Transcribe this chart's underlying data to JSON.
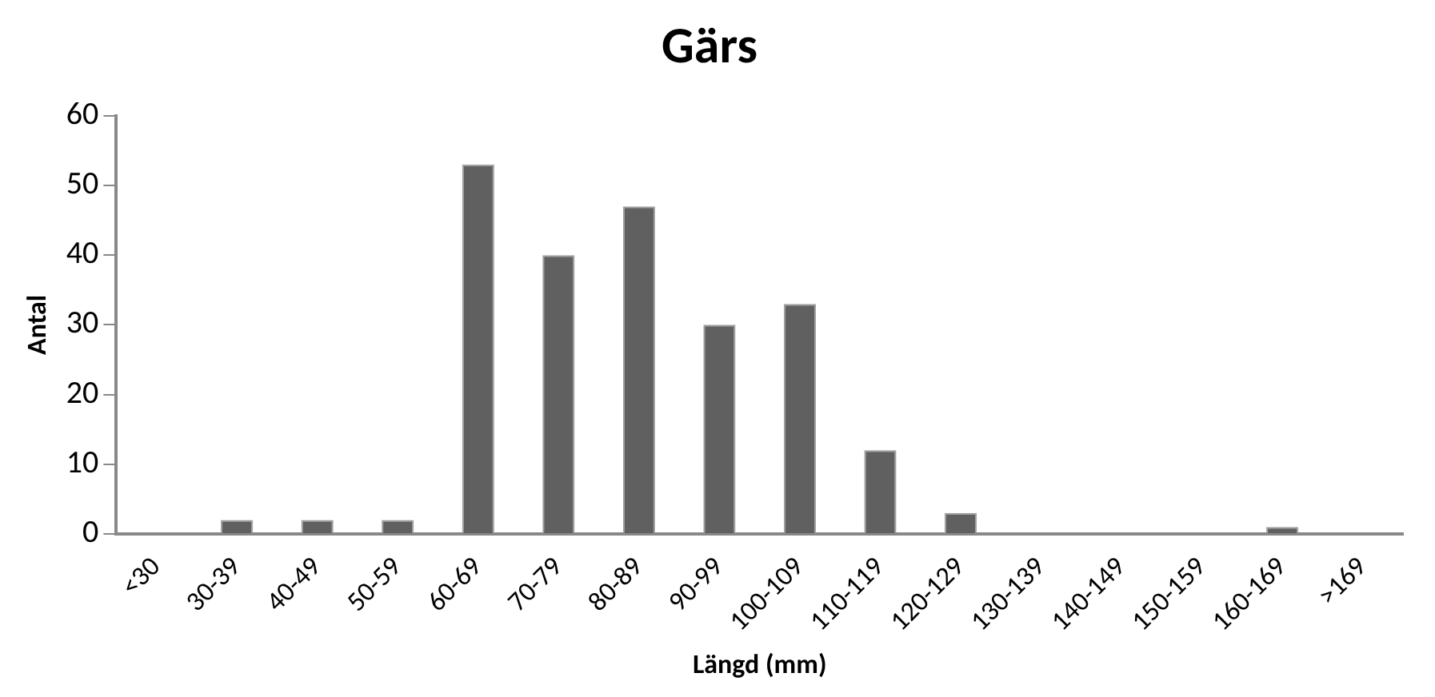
{
  "chart_data": {
    "type": "bar",
    "title": "Gärs",
    "xlabel": "Längd (mm)",
    "ylabel": "Antal",
    "categories": [
      "<30",
      "30-39",
      "40-49",
      "50-59",
      "60-69",
      "70-79",
      "80-89",
      "90-99",
      "100-109",
      "110-119",
      "120-129",
      "130-139",
      "140-149",
      "150-159",
      "160-169",
      ">169"
    ],
    "values": [
      0,
      2,
      2,
      2,
      53,
      40,
      47,
      30,
      33,
      12,
      3,
      0,
      0,
      0,
      1,
      0
    ],
    "color": "#606060",
    "ylim": [
      0,
      60
    ],
    "yticks": [
      0,
      10,
      20,
      30,
      40,
      50,
      60
    ],
    "grid": false,
    "legend": false
  }
}
